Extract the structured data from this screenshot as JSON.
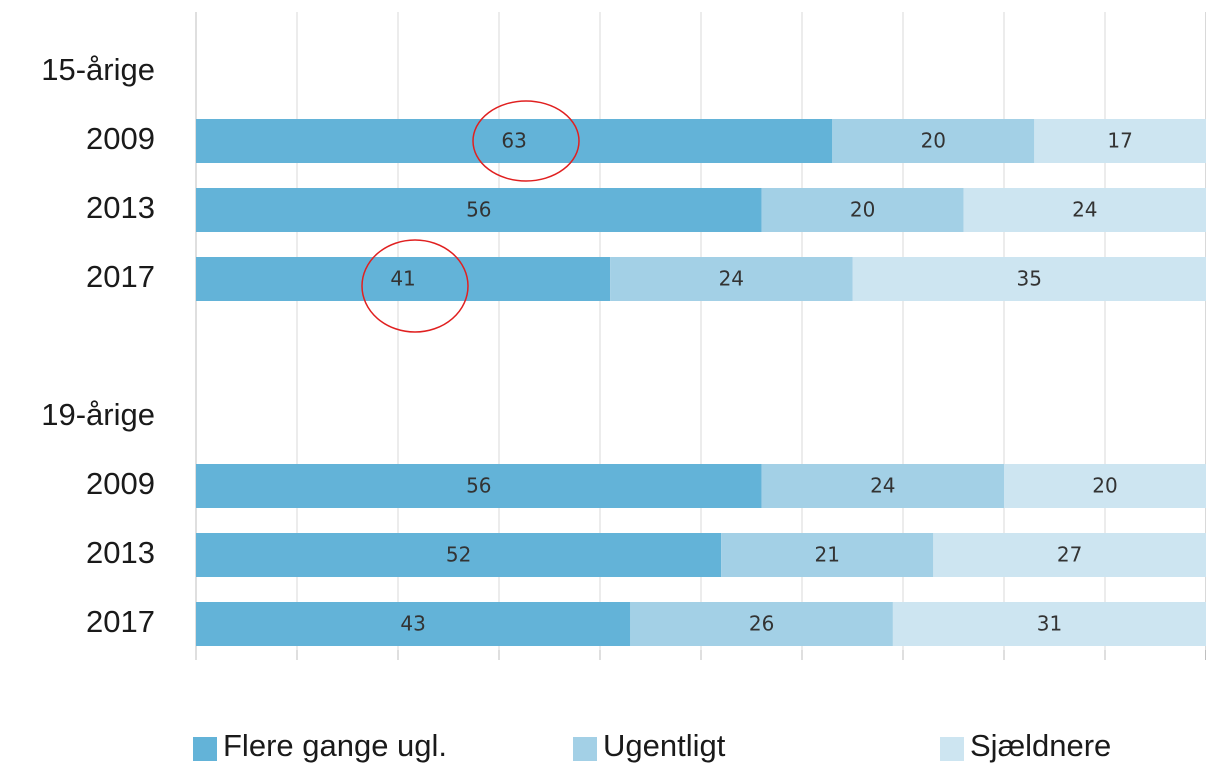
{
  "chart_data": {
    "type": "stacked-barh",
    "categories": [
      "15-årige",
      "2009",
      "2013",
      "2017",
      null,
      "19-årige",
      "2009",
      "2013",
      "2017"
    ],
    "series": [
      {
        "name": "Flere gange ugl.",
        "color": "#63b3d8",
        "values": [
          null,
          63,
          56,
          41,
          null,
          null,
          56,
          52,
          43
        ]
      },
      {
        "name": "Ugentligt",
        "color": "#a3d0e6",
        "values": [
          null,
          20,
          20,
          24,
          null,
          null,
          24,
          21,
          26
        ]
      },
      {
        "name": "Sjældnere",
        "color": "#cde5f1",
        "values": [
          null,
          17,
          24,
          35,
          null,
          null,
          20,
          27,
          31
        ]
      }
    ],
    "xlim": [
      0,
      100
    ],
    "xticks": [
      0,
      10,
      20,
      30,
      40,
      50,
      60,
      70,
      80,
      90,
      100
    ],
    "grid": true
  }
}
